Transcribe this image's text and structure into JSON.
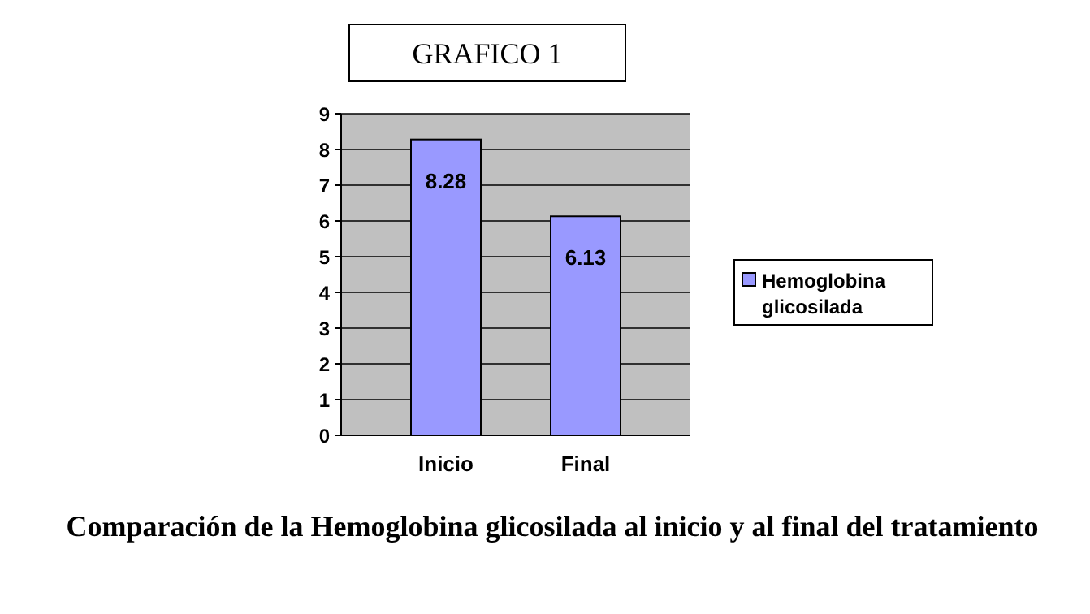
{
  "chart_data": {
    "type": "bar",
    "title": "GRAFICO 1",
    "categories": [
      "Inicio",
      "Final"
    ],
    "series": [
      {
        "name": "Hemoglobina glicosilada",
        "color": "#9999ff",
        "values": [
          8.28,
          6.13
        ]
      }
    ],
    "ylim": [
      0,
      9
    ],
    "yticks": [
      0,
      1,
      2,
      3,
      4,
      5,
      6,
      7,
      8,
      9
    ],
    "grid": "y",
    "legend": "right",
    "data_labels": true,
    "annotations": [
      "Comparación de la Hemoglobina glicosilada al inicio y al final del tratamiento"
    ]
  }
}
